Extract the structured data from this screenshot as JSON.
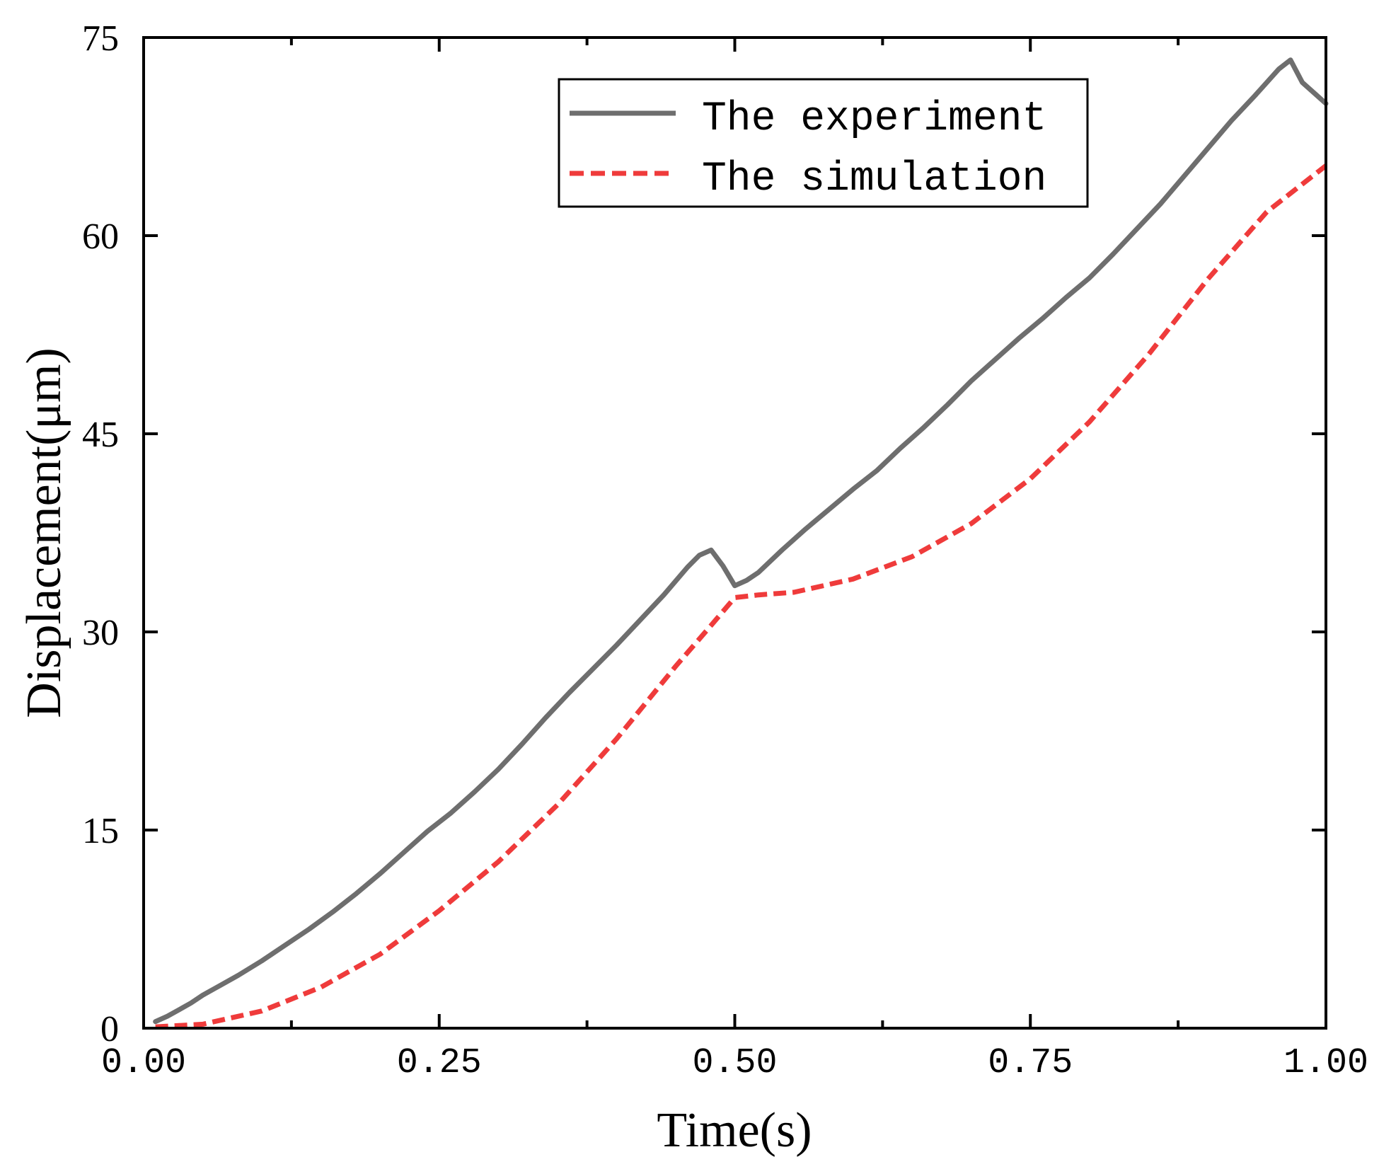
{
  "chart_data": {
    "type": "line",
    "title": "",
    "xlabel": "Time(s)",
    "ylabel": "Displacement(μm)",
    "xlim": [
      0.0,
      1.0
    ],
    "ylim": [
      0,
      75
    ],
    "x_ticks": [
      "0.00",
      "0.25",
      "0.50",
      "0.75",
      "1.00"
    ],
    "y_ticks": [
      "0",
      "15",
      "30",
      "45",
      "60",
      "75"
    ],
    "legend_position": "top-right",
    "series": [
      {
        "name": "The experiment",
        "style": "solid",
        "color": "#6e6e6e",
        "x": [
          0.01,
          0.02,
          0.03,
          0.04,
          0.05,
          0.06,
          0.08,
          0.1,
          0.12,
          0.14,
          0.16,
          0.18,
          0.2,
          0.22,
          0.24,
          0.26,
          0.28,
          0.3,
          0.32,
          0.34,
          0.36,
          0.38,
          0.4,
          0.42,
          0.44,
          0.46,
          0.47,
          0.48,
          0.49,
          0.5,
          0.51,
          0.52,
          0.54,
          0.56,
          0.58,
          0.6,
          0.62,
          0.64,
          0.66,
          0.68,
          0.7,
          0.72,
          0.74,
          0.76,
          0.78,
          0.8,
          0.82,
          0.84,
          0.86,
          0.88,
          0.9,
          0.92,
          0.94,
          0.96,
          0.97,
          0.98,
          0.99,
          1.0
        ],
        "values": [
          0.5,
          0.9,
          1.4,
          1.9,
          2.5,
          3.0,
          4.0,
          5.1,
          6.3,
          7.5,
          8.8,
          10.2,
          11.7,
          13.3,
          14.9,
          16.3,
          17.9,
          19.6,
          21.5,
          23.5,
          25.4,
          27.2,
          29.0,
          30.9,
          32.8,
          34.9,
          35.8,
          36.2,
          35.0,
          33.5,
          33.9,
          34.5,
          36.2,
          37.8,
          39.3,
          40.8,
          42.2,
          43.9,
          45.5,
          47.2,
          49.0,
          50.6,
          52.2,
          53.7,
          55.3,
          56.8,
          58.6,
          60.5,
          62.4,
          64.5,
          66.6,
          68.7,
          70.6,
          72.6,
          73.3,
          71.6,
          70.8,
          70.0
        ]
      },
      {
        "name": "The simulation",
        "style": "dashed",
        "color": "#ef3b3b",
        "x": [
          0.01,
          0.05,
          0.1,
          0.15,
          0.2,
          0.25,
          0.3,
          0.35,
          0.4,
          0.45,
          0.48,
          0.5,
          0.52,
          0.55,
          0.6,
          0.65,
          0.7,
          0.75,
          0.8,
          0.85,
          0.9,
          0.95,
          1.0
        ],
        "values": [
          0.1,
          0.3,
          1.3,
          3.1,
          5.6,
          8.9,
          12.6,
          16.9,
          21.9,
          27.4,
          30.5,
          32.6,
          32.8,
          33.0,
          34.0,
          35.7,
          38.2,
          41.6,
          45.9,
          51.0,
          56.7,
          61.8,
          65.3
        ]
      }
    ]
  }
}
